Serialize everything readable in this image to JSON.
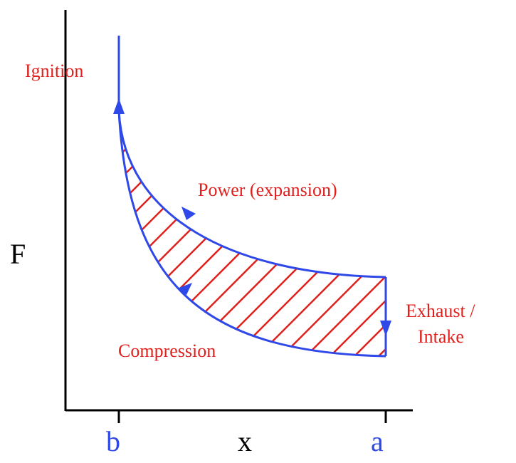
{
  "colors": {
    "cycle": "#2f48e8",
    "hatch": "#e0201c",
    "label": "#e0201c",
    "axis": "#000000"
  },
  "axes": {
    "y_label": "F",
    "x_label": "x",
    "tick_b": "b",
    "tick_a": "a"
  },
  "labels": {
    "ignition": "Ignition",
    "power": "Power (expansion)",
    "exhaust_line1": "Exhaust /",
    "exhaust_line2": "Intake",
    "compression": "Compression"
  }
}
